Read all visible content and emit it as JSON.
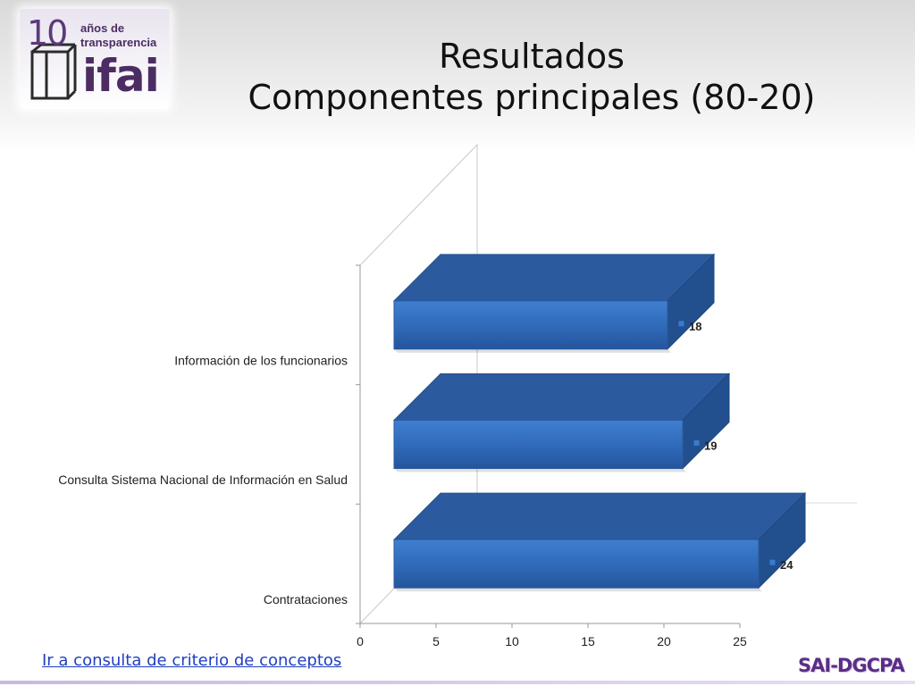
{
  "header": {
    "title_line1": "Resultados",
    "title_line2": "Componentes principales (80-20)"
  },
  "logo": {
    "number": "10",
    "line1": "años de",
    "line2": "transparencia",
    "brand": "ifai"
  },
  "chart_data": {
    "type": "bar",
    "orientation": "horizontal",
    "style": "3d",
    "categories": [
      "Información de los funcionarios",
      "Consulta Sistema Nacional de Información en Salud",
      "Contrataciones"
    ],
    "values": [
      18,
      19,
      24
    ],
    "data_labels": [
      "18",
      "19",
      "24"
    ],
    "xlim": [
      0,
      25
    ],
    "xticks": [
      "0",
      "5",
      "10",
      "15",
      "20",
      "25"
    ],
    "bar_color": "#2f66b3",
    "grid": false,
    "legend": "none"
  },
  "footer": {
    "link_text": "Ir a consulta de criterio de conceptos",
    "brand_text": "SAI-DGCPA"
  },
  "colors": {
    "accent": "#5b2d86",
    "link": "#1f3fbf"
  }
}
